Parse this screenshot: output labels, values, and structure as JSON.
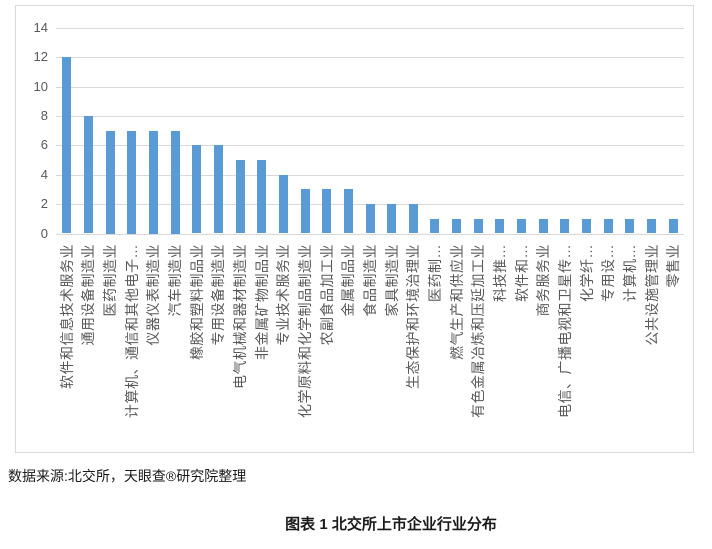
{
  "chart_data": {
    "type": "bar",
    "title": "",
    "xlabel": "",
    "ylabel": "",
    "categories": [
      "软件和信息技术服务业",
      "通用设备制造业",
      "医药制造业",
      "计算机、通信和其他电子…",
      "仪器仪表制造业",
      "汽车制造业",
      "橡胶和塑料制品业",
      "专用设备制造业",
      "电气机械和器材制造业",
      "非金属矿物制品业",
      "专业技术服务业",
      "化学原料和化学制品制造业",
      "农副食品加工业",
      "金属制品业",
      "食品制造业",
      "家具制造业",
      "生态保护和环境治理业",
      "医药制…",
      "燃气生产和供应业",
      "有色金属冶炼和压延加工业",
      "科技推…",
      "软件和…",
      "商务服务业",
      "电信、广播电视和卫星传…",
      "化学纤…",
      "专用设…",
      "计算机…",
      "公共设施管理业",
      "零售业"
    ],
    "values": [
      12,
      8,
      7,
      7,
      7,
      7,
      6,
      6,
      5,
      5,
      4,
      3,
      3,
      3,
      2,
      2,
      2,
      1,
      1,
      1,
      1,
      1,
      1,
      1,
      1,
      1,
      1,
      1,
      1
    ],
    "ylim": [
      0,
      14
    ],
    "yticks": [
      0,
      2,
      4,
      6,
      8,
      10,
      12,
      14
    ],
    "grid": true,
    "legend": false,
    "bar_color": "#5B9BD5",
    "gridline_color": "#D9D9D9",
    "border_color": "#D9D9D9",
    "axis_text_color": "#595959",
    "category_label_rotation": "vertical-bottom-to-top"
  },
  "footer": {
    "source_note": "数据来源:北交所，天眼查®研究院整理",
    "caption": "图表 1 北交所上市企业行业分布"
  }
}
